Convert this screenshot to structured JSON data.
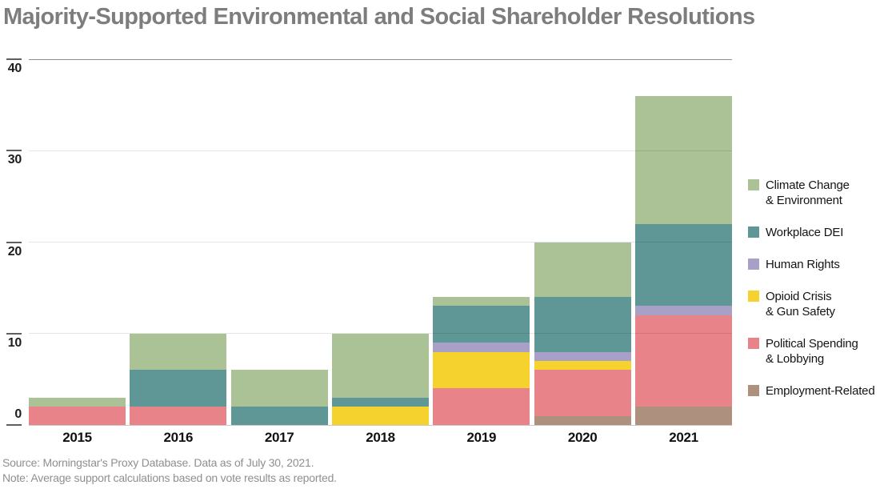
{
  "title": "Majority-Supported Environmental and Social Shareholder Resolutions",
  "footer": {
    "source": "Source: Morningstar's Proxy Database. Data as of July 30, 2021.",
    "note": "Note: Average support calculations based on vote results as reported."
  },
  "legend": {
    "position": "right",
    "items": [
      {
        "name": "climate-change-environment",
        "color": "#abc297",
        "label_lines": [
          "Climate Change",
          "& Environment"
        ]
      },
      {
        "name": "workplace-dei",
        "color": "#5e9795",
        "label_lines": [
          "Workplace DEI"
        ]
      },
      {
        "name": "human-rights",
        "color": "#a8a0c6",
        "label_lines": [
          "Human Rights"
        ]
      },
      {
        "name": "opioid-crisis-gun-safety",
        "color": "#f6d22e",
        "label_lines": [
          "Opioid Crisis",
          "& Gun Safety"
        ]
      },
      {
        "name": "political-spending-lobbying",
        "color": "#e9838a",
        "label_lines": [
          "Political Spending",
          "& Lobbying"
        ]
      },
      {
        "name": "employment-related",
        "color": "#ad907e",
        "label_lines": [
          "Employment-Related"
        ]
      }
    ]
  },
  "chart_data": {
    "type": "bar",
    "stacked": true,
    "title": "Majority-Supported Environmental and Social Shareholder Resolutions",
    "categories": [
      "2015",
      "2016",
      "2017",
      "2018",
      "2019",
      "2020",
      "2021"
    ],
    "series_bottom_to_top": [
      {
        "name": "Employment-Related",
        "color": "#ad907e",
        "values": [
          0,
          0,
          0,
          0,
          0,
          1,
          2
        ]
      },
      {
        "name": "Political Spending & Lobbying",
        "color": "#e9838a",
        "values": [
          2,
          2,
          0,
          0,
          4,
          5,
          10
        ]
      },
      {
        "name": "Opioid Crisis & Gun Safety",
        "color": "#f6d22e",
        "values": [
          0,
          0,
          0,
          2,
          4,
          1,
          0
        ]
      },
      {
        "name": "Human Rights",
        "color": "#a8a0c6",
        "values": [
          0,
          0,
          0,
          0,
          1,
          1,
          1
        ]
      },
      {
        "name": "Workplace DEI",
        "color": "#5e9795",
        "values": [
          0,
          4,
          2,
          1,
          4,
          6,
          9
        ]
      },
      {
        "name": "Climate Change & Environment",
        "color": "#abc297",
        "values": [
          1,
          4,
          4,
          7,
          1,
          6,
          14
        ]
      }
    ],
    "totals": [
      3,
      10,
      6,
      10,
      14,
      20,
      36
    ],
    "xlabel": "",
    "ylabel": "",
    "ylim": [
      0,
      40
    ],
    "yticks": [
      0,
      10,
      20,
      30,
      40
    ],
    "grid": "horizontal",
    "legend_position": "right"
  }
}
